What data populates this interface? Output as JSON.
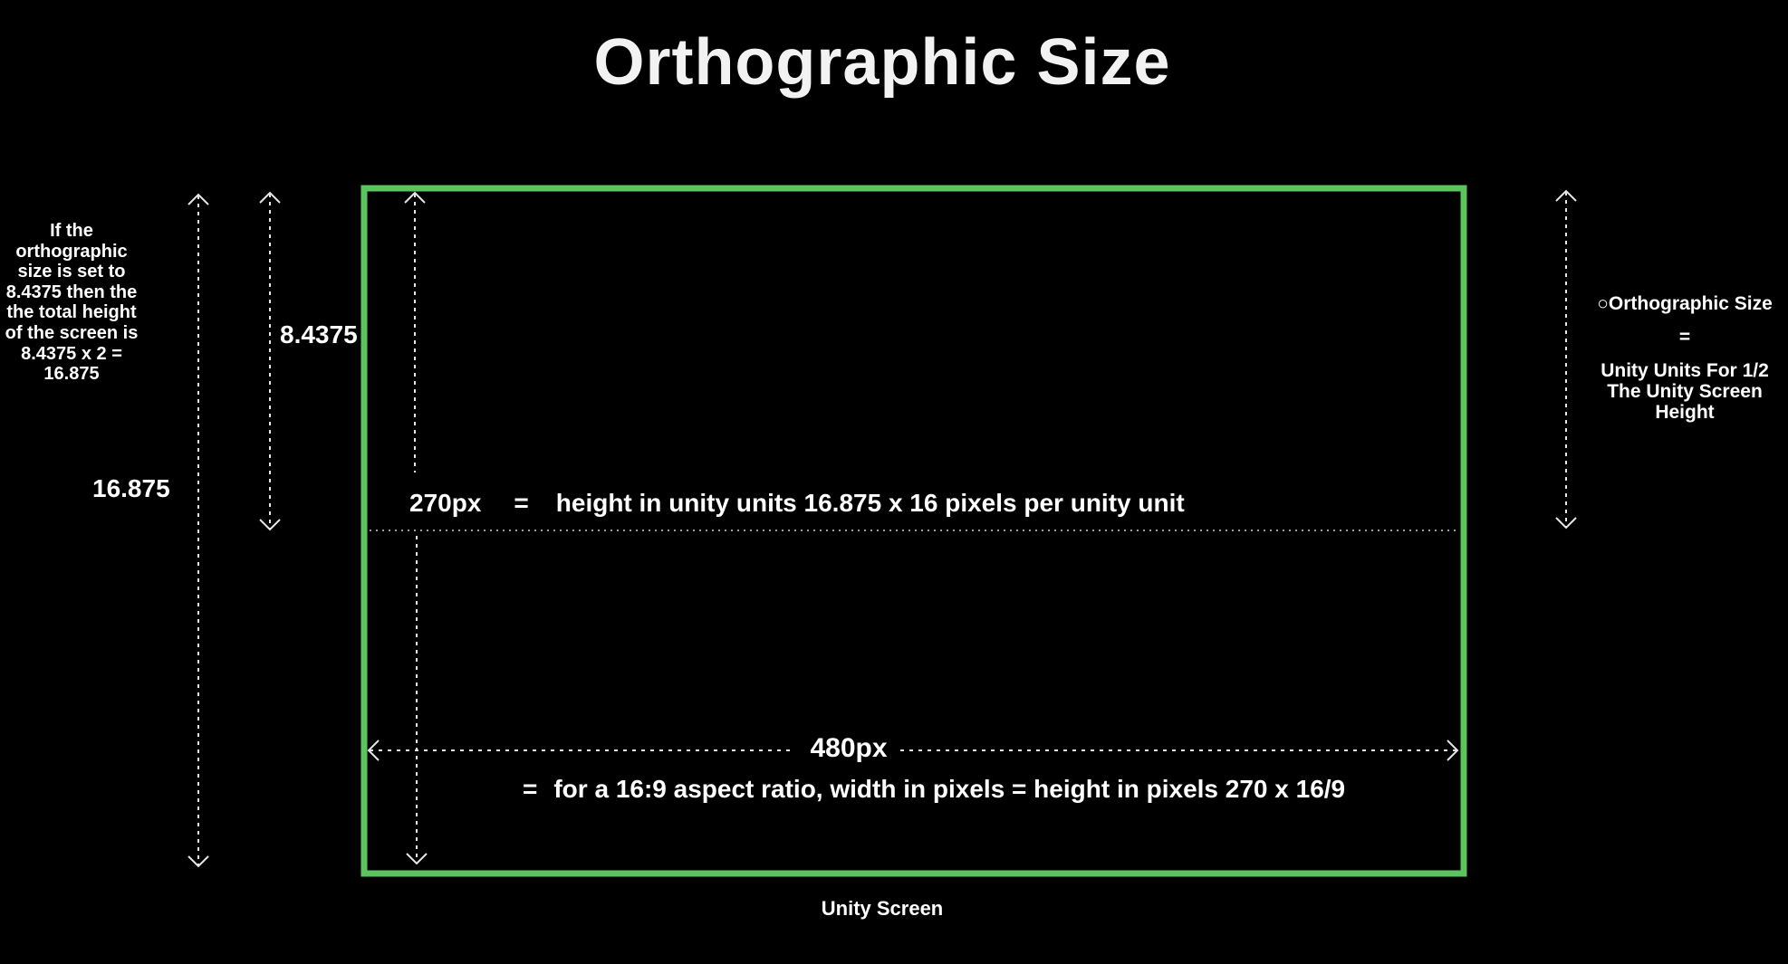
{
  "title": "Orthographic Size",
  "left_note": "If the orthographic size is set to 8.4375 then the the total height of the screen is 8.4375 x 2 = 16.875",
  "labels": {
    "total_height": "16.875",
    "half_height": "8.4375",
    "height_px": "270px",
    "height_equals": "=",
    "height_formula": "height in unity units 16.875 x 16 pixels per unity unit",
    "width_px": "480px",
    "width_equals": "=",
    "width_formula": "for a 16:9 aspect ratio, width in pixels = height in pixels 270 x 16/9",
    "screen_caption": "Unity Screen"
  },
  "right_note": {
    "heading": "○Orthographic Size",
    "equals": "=",
    "description": "Unity Units For 1/2 The Unity Screen Height"
  },
  "colors": {
    "background": "#000000",
    "screen_border": "#5cc45c",
    "text": "#ffffff",
    "guide_lines": "#e6e6e6"
  }
}
